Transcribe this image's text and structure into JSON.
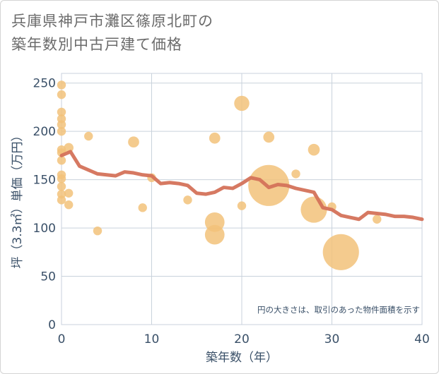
{
  "title_line1": "兵庫県神戸市灘区篠原北町の",
  "title_line2": "築年数別中古戸建て価格",
  "chart_data": {
    "type": "scatter",
    "xlabel": "築年数（年）",
    "ylabel": "坪（3.3㎡）単価（万円）",
    "xlim": [
      0,
      40
    ],
    "ylim": [
      0,
      260
    ],
    "xticks": [
      0,
      10,
      20,
      30,
      40
    ],
    "yticks": [
      0,
      50,
      100,
      150,
      200,
      250
    ],
    "grid": true,
    "note": "円の大きさは、取引のあった物件面積を示す",
    "colors": {
      "bubble": "#f2c27a",
      "line": "#d4725a"
    },
    "points": [
      {
        "x": 0,
        "y": 248,
        "size": 1
      },
      {
        "x": 0,
        "y": 238,
        "size": 1
      },
      {
        "x": 0,
        "y": 220,
        "size": 1
      },
      {
        "x": 0,
        "y": 213,
        "size": 1
      },
      {
        "x": 0,
        "y": 207,
        "size": 1
      },
      {
        "x": 0,
        "y": 200,
        "size": 1
      },
      {
        "x": 0,
        "y": 181,
        "size": 1
      },
      {
        "x": 0,
        "y": 178,
        "size": 1
      },
      {
        "x": 0,
        "y": 170,
        "size": 1
      },
      {
        "x": 0,
        "y": 155,
        "size": 1
      },
      {
        "x": 0,
        "y": 151,
        "size": 1
      },
      {
        "x": 0,
        "y": 143,
        "size": 1
      },
      {
        "x": 0,
        "y": 135,
        "size": 1
      },
      {
        "x": 0,
        "y": 129,
        "size": 1
      },
      {
        "x": 0.8,
        "y": 183,
        "size": 1.2
      },
      {
        "x": 0.8,
        "y": 136,
        "size": 1
      },
      {
        "x": 0.8,
        "y": 124,
        "size": 1
      },
      {
        "x": 3,
        "y": 195,
        "size": 1
      },
      {
        "x": 4,
        "y": 97,
        "size": 1
      },
      {
        "x": 8,
        "y": 189,
        "size": 1.6
      },
      {
        "x": 9,
        "y": 121,
        "size": 1
      },
      {
        "x": 10,
        "y": 152,
        "size": 1
      },
      {
        "x": 14,
        "y": 129,
        "size": 1
      },
      {
        "x": 17,
        "y": 193,
        "size": 1.6
      },
      {
        "x": 17,
        "y": 106,
        "size": 5
      },
      {
        "x": 17,
        "y": 93,
        "size": 5
      },
      {
        "x": 20,
        "y": 229,
        "size": 3
      },
      {
        "x": 20,
        "y": 123,
        "size": 1
      },
      {
        "x": 23,
        "y": 194,
        "size": 1.6
      },
      {
        "x": 23,
        "y": 144,
        "size": 22
      },
      {
        "x": 26,
        "y": 156,
        "size": 1
      },
      {
        "x": 28,
        "y": 181,
        "size": 1.8
      },
      {
        "x": 28,
        "y": 119,
        "size": 9
      },
      {
        "x": 30,
        "y": 122,
        "size": 1
      },
      {
        "x": 31,
        "y": 75,
        "size": 17
      },
      {
        "x": 35,
        "y": 109,
        "size": 1
      }
    ],
    "trend": {
      "x": [
        0,
        1,
        2,
        3,
        4,
        5,
        6,
        7,
        8,
        9,
        10,
        11,
        12,
        13,
        14,
        15,
        16,
        17,
        18,
        19,
        20,
        21,
        22,
        23,
        24,
        25,
        26,
        27,
        28,
        29,
        30,
        31,
        32,
        33,
        34,
        35,
        36,
        37,
        38,
        39,
        40
      ],
      "y": [
        175,
        179,
        164,
        160,
        156,
        155,
        154,
        158,
        157,
        155,
        154,
        146,
        147,
        146,
        144,
        136,
        135,
        137,
        142,
        141,
        146,
        152,
        150,
        142,
        145,
        144,
        141,
        139,
        137,
        121,
        119,
        113,
        111,
        109,
        116,
        115,
        114,
        112,
        112,
        111,
        109
      ]
    }
  }
}
